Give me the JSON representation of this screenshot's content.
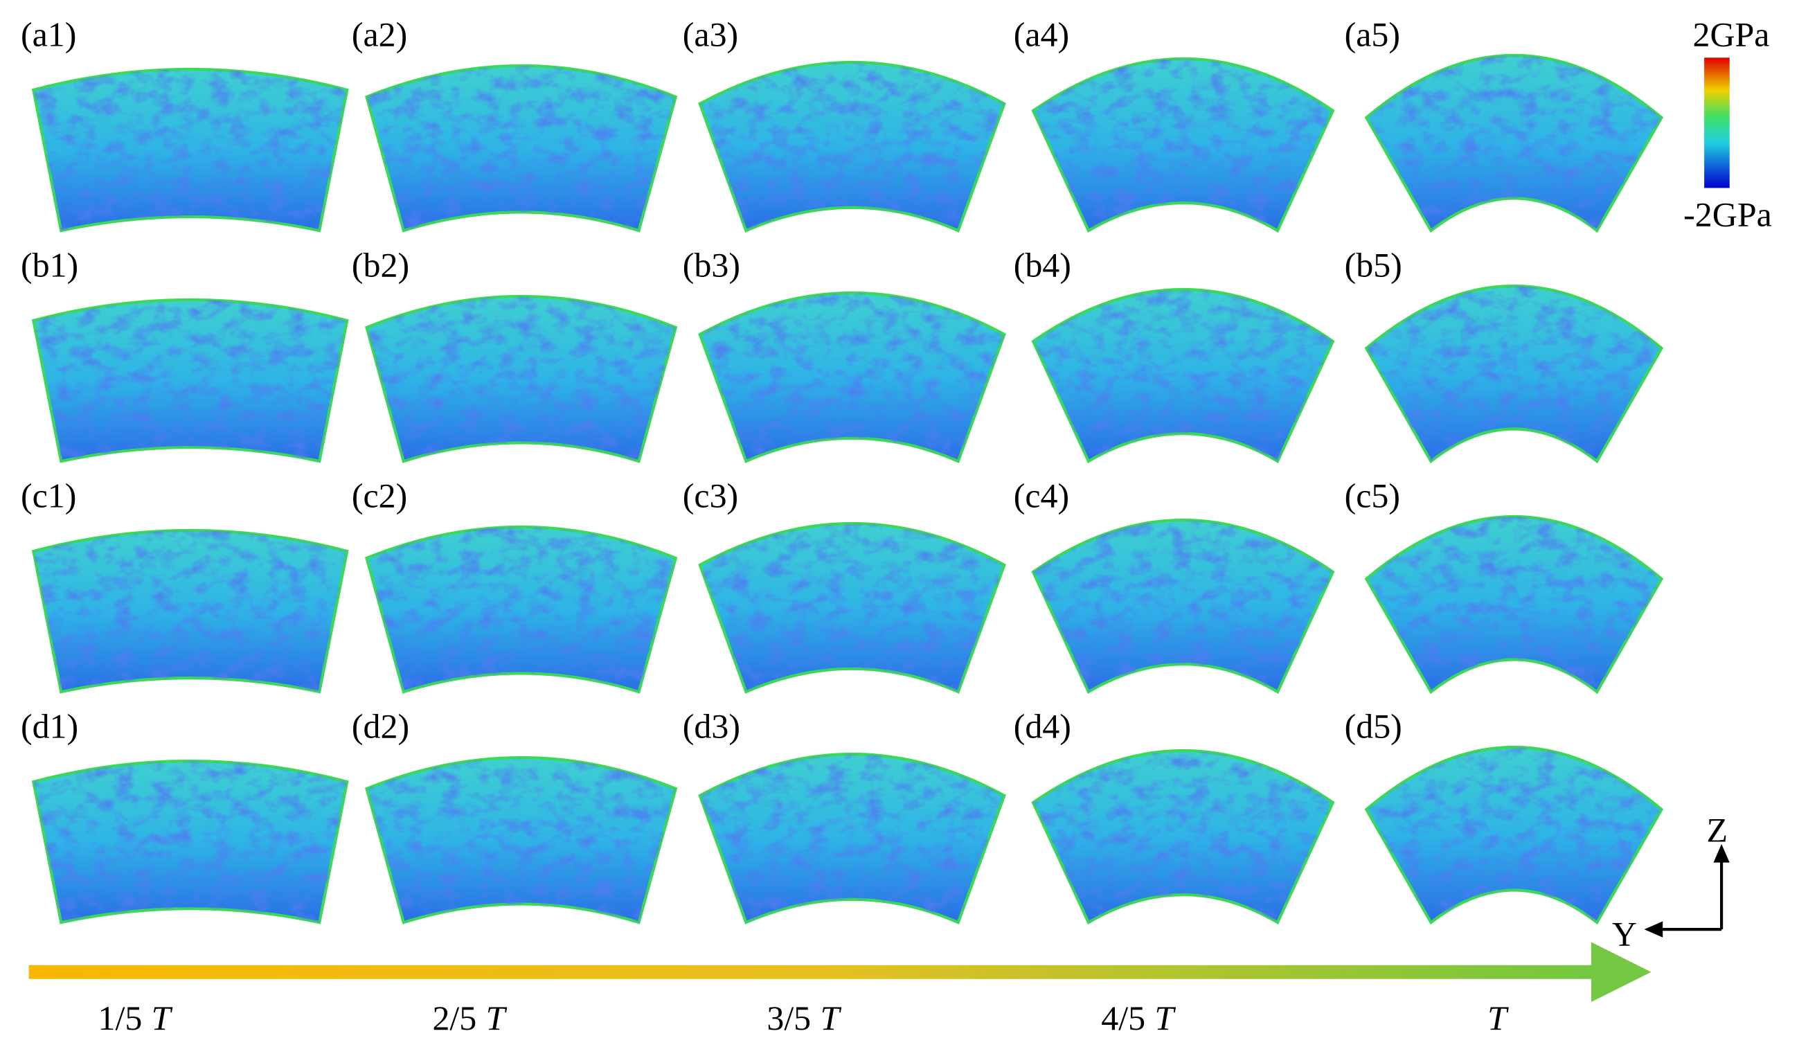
{
  "panels": [
    [
      "(a1)",
      "(a2)",
      "(a3)",
      "(a4)",
      "(a5)"
    ],
    [
      "(b1)",
      "(b2)",
      "(b3)",
      "(b4)",
      "(b5)"
    ],
    [
      "(c1)",
      "(c2)",
      "(c3)",
      "(c4)",
      "(c5)"
    ],
    [
      "(d1)",
      "(d2)",
      "(d3)",
      "(d4)",
      "(d5)"
    ]
  ],
  "colorbar": {
    "max": "2GPa",
    "min": "-2GPa"
  },
  "time_axis": [
    {
      "fraction": "1/5",
      "symbol": "T"
    },
    {
      "fraction": "2/5",
      "symbol": "T"
    },
    {
      "fraction": "3/5",
      "symbol": "T"
    },
    {
      "fraction": "4/5",
      "symbol": "T"
    },
    {
      "symbol": "T"
    }
  ],
  "axes": {
    "z": "Z",
    "y": "Y"
  }
}
